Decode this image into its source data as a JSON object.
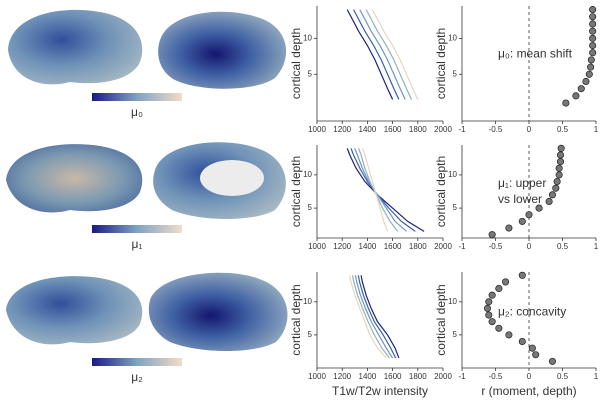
{
  "brain_labels": [
    "μ₀",
    "μ₁",
    "μ₂"
  ],
  "chart_data": [
    {
      "type": "line",
      "ylabel": "cortical depth",
      "xlim": [
        1000,
        2000
      ],
      "xticks": [
        1000,
        1200,
        1400,
        1600,
        1800,
        2000
      ],
      "ylim": [
        -1.5,
        14.5
      ],
      "yticks": [
        5,
        10
      ],
      "y": [
        1.5,
        3,
        5,
        7,
        9,
        11,
        13,
        14
      ],
      "series": [
        {
          "color": "#1a237e",
          "values": [
            1600,
            1560,
            1510,
            1460,
            1400,
            1330,
            1270,
            1240
          ]
        },
        {
          "color": "#3a5fa8",
          "values": [
            1650,
            1610,
            1560,
            1510,
            1450,
            1380,
            1320,
            1290
          ]
        },
        {
          "color": "#6f95c4",
          "values": [
            1700,
            1660,
            1610,
            1560,
            1500,
            1430,
            1370,
            1340
          ]
        },
        {
          "color": "#8fb3b8",
          "values": [
            1750,
            1710,
            1660,
            1610,
            1550,
            1480,
            1420,
            1390
          ]
        },
        {
          "color": "#e8d5c0",
          "values": [
            1800,
            1760,
            1710,
            1660,
            1600,
            1530,
            1470,
            1440
          ]
        }
      ]
    },
    {
      "type": "scatter",
      "ylabel": "cortical depth",
      "annotation": [
        "μ₀: mean shift"
      ],
      "xlim": [
        -1,
        1
      ],
      "xticks": [
        -1,
        -0.5,
        0,
        0.5,
        1
      ],
      "ylim": [
        -1.5,
        14.5
      ],
      "yticks": [
        5,
        10
      ],
      "vline": 0,
      "color": "#777777",
      "x": [
        0.55,
        0.7,
        0.78,
        0.85,
        0.9,
        0.92,
        0.93,
        0.95,
        0.95,
        0.95,
        0.95,
        0.95,
        0.95,
        0.95
      ],
      "values": [
        1,
        2,
        3,
        4,
        5,
        6,
        7,
        8,
        9,
        10,
        11,
        12,
        13,
        14
      ]
    },
    {
      "type": "line",
      "ylabel": "cortical depth",
      "xlim": [
        1000,
        2000
      ],
      "xticks": [
        1000,
        1200,
        1400,
        1600,
        1800,
        2000
      ],
      "ylim": [
        0.5,
        14.5
      ],
      "yticks": [
        5,
        10
      ],
      "y": [
        1.5,
        3,
        5,
        7,
        9,
        11,
        13,
        14
      ],
      "series": [
        {
          "color": "#1a237e",
          "values": [
            1850,
            1720,
            1600,
            1480,
            1380,
            1310,
            1260,
            1240
          ]
        },
        {
          "color": "#3a5fa8",
          "values": [
            1780,
            1670,
            1570,
            1480,
            1400,
            1340,
            1290,
            1270
          ]
        },
        {
          "color": "#6f95c4",
          "values": [
            1710,
            1620,
            1550,
            1480,
            1410,
            1360,
            1320,
            1300
          ]
        },
        {
          "color": "#8fb3b8",
          "values": [
            1640,
            1580,
            1520,
            1470,
            1420,
            1380,
            1350,
            1330
          ]
        },
        {
          "color": "#e8d5c0",
          "values": [
            1560,
            1530,
            1500,
            1470,
            1440,
            1410,
            1380,
            1360
          ]
        }
      ]
    },
    {
      "type": "scatter",
      "ylabel": "cortical depth",
      "annotation": [
        "μ₁: upper",
        "vs lower"
      ],
      "xlim": [
        -1,
        1
      ],
      "xticks": [
        -1,
        -0.5,
        0,
        0.5,
        1
      ],
      "ylim": [
        0.5,
        14.5
      ],
      "yticks": [
        5,
        10
      ],
      "vline": 0,
      "color": "#777777",
      "x": [
        -0.55,
        -0.3,
        -0.1,
        0,
        0.15,
        0.3,
        0.35,
        0.4,
        0.42,
        0.45,
        0.45,
        0.47,
        0.47,
        0.48
      ],
      "values": [
        1,
        2,
        3,
        4,
        5,
        6,
        7,
        8,
        9,
        10,
        11,
        12,
        13,
        14
      ]
    },
    {
      "type": "line",
      "ylabel": "cortical depth",
      "xlabel": "T1w/T2w intensity",
      "xlim": [
        1000,
        2000
      ],
      "xticks": [
        1000,
        1200,
        1400,
        1600,
        1800,
        2000
      ],
      "ylim": [
        0,
        14.5
      ],
      "yticks": [
        5,
        10
      ],
      "y": [
        1.5,
        3,
        5,
        7,
        9,
        11,
        13,
        14
      ],
      "series": [
        {
          "color": "#1a237e",
          "values": [
            1650,
            1620,
            1560,
            1480,
            1430,
            1390,
            1360,
            1350
          ]
        },
        {
          "color": "#3a5fa8",
          "values": [
            1625,
            1585,
            1525,
            1455,
            1408,
            1368,
            1338,
            1328
          ]
        },
        {
          "color": "#6f95c4",
          "values": [
            1600,
            1550,
            1490,
            1430,
            1385,
            1345,
            1315,
            1305
          ]
        },
        {
          "color": "#8fb3b8",
          "values": [
            1575,
            1515,
            1455,
            1405,
            1362,
            1322,
            1292,
            1282
          ]
        },
        {
          "color": "#e8d5c0",
          "values": [
            1550,
            1480,
            1420,
            1380,
            1340,
            1300,
            1270,
            1260
          ]
        }
      ]
    },
    {
      "type": "scatter",
      "ylabel": "cortical depth",
      "xlabel": "r (moment, depth)",
      "annotation": [
        "μ₂: concavity"
      ],
      "xlim": [
        -1,
        1
      ],
      "xticks": [
        -1,
        -0.5,
        0,
        0.5,
        1
      ],
      "ylim": [
        0,
        14.5
      ],
      "yticks": [
        5,
        10
      ],
      "vline": 0,
      "color": "#777777",
      "x": [
        0.35,
        0.1,
        0.05,
        -0.1,
        -0.3,
        -0.45,
        -0.55,
        -0.6,
        -0.62,
        -0.6,
        -0.55,
        -0.45,
        -0.35,
        -0.1
      ],
      "values": [
        1,
        2,
        3,
        4,
        5,
        6,
        7,
        8,
        9,
        10,
        11,
        12,
        13,
        14
      ]
    }
  ]
}
